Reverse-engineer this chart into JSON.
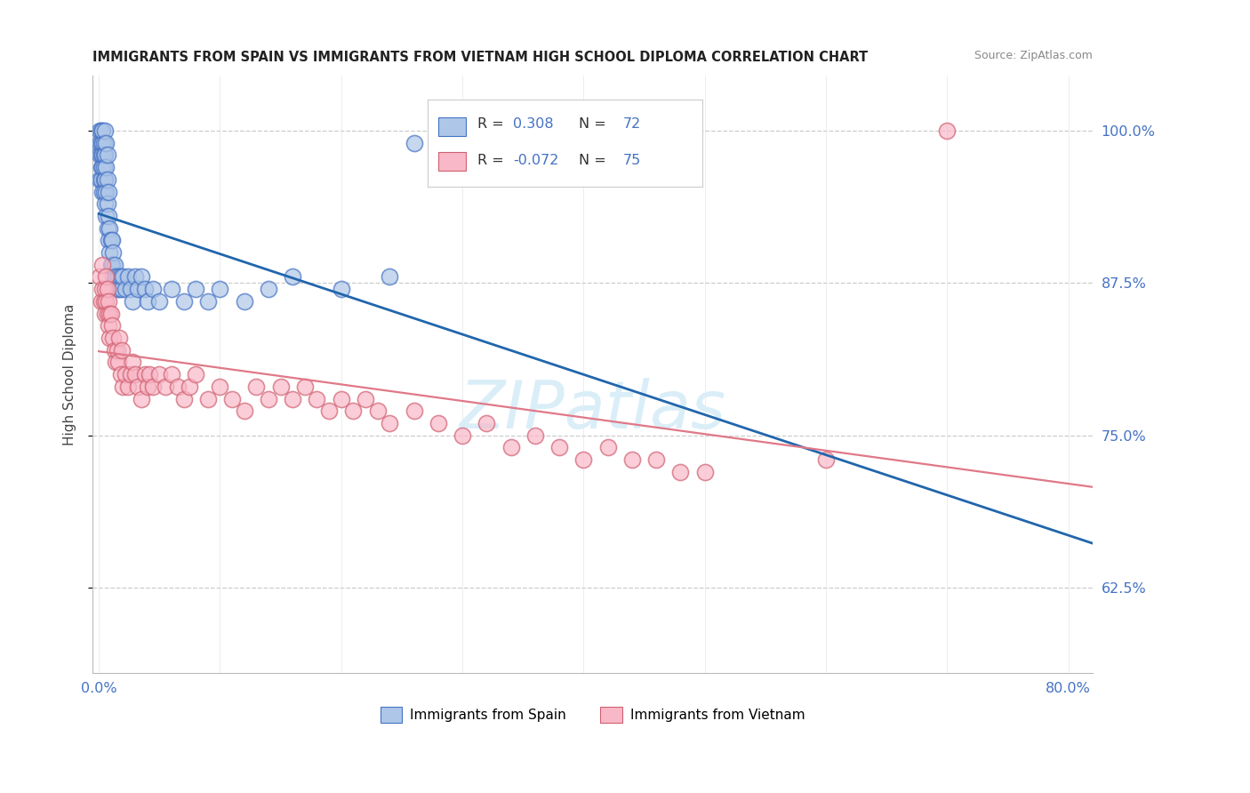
{
  "title": "IMMIGRANTS FROM SPAIN VS IMMIGRANTS FROM VIETNAM HIGH SCHOOL DIPLOMA CORRELATION CHART",
  "source": "Source: ZipAtlas.com",
  "ylabel": "High School Diploma",
  "yticks": [
    0.625,
    0.75,
    0.875,
    1.0
  ],
  "ytick_labels": [
    "62.5%",
    "75.0%",
    "87.5%",
    "100.0%"
  ],
  "xticks": [
    0.0,
    0.1,
    0.2,
    0.3,
    0.4,
    0.5,
    0.6,
    0.7,
    0.8
  ],
  "xlim": [
    -0.005,
    0.82
  ],
  "ylim": [
    0.555,
    1.045
  ],
  "legend_r_spain": "0.308",
  "legend_n_spain": "72",
  "legend_r_vietnam": "-0.072",
  "legend_n_vietnam": "75",
  "color_spain": "#aec6e8",
  "color_vietnam": "#f9b8c8",
  "edge_color_spain": "#4472c4",
  "edge_color_vietnam": "#d06070",
  "line_color_spain": "#2166ac",
  "line_color_vietnam": "#e07888",
  "watermark": "ZIPatlas",
  "watermark_color": "#daeef8",
  "background_color": "#ffffff",
  "grid_color": "#cccccc",
  "tick_label_color": "#4472c4",
  "title_color": "#222222",
  "source_color": "#888888",
  "legend_text_color": "#333333",
  "legend_num_color": "#4472c4",
  "spain_x": [
    0.001,
    0.001,
    0.001,
    0.001,
    0.002,
    0.002,
    0.002,
    0.002,
    0.002,
    0.003,
    0.003,
    0.003,
    0.003,
    0.003,
    0.004,
    0.004,
    0.004,
    0.004,
    0.004,
    0.005,
    0.005,
    0.005,
    0.005,
    0.006,
    0.006,
    0.006,
    0.006,
    0.007,
    0.007,
    0.007,
    0.007,
    0.008,
    0.008,
    0.008,
    0.009,
    0.009,
    0.01,
    0.01,
    0.011,
    0.011,
    0.012,
    0.012,
    0.013,
    0.014,
    0.015,
    0.016,
    0.017,
    0.018,
    0.019,
    0.02,
    0.022,
    0.024,
    0.026,
    0.028,
    0.03,
    0.032,
    0.035,
    0.038,
    0.04,
    0.045,
    0.05,
    0.06,
    0.07,
    0.08,
    0.09,
    0.1,
    0.12,
    0.14,
    0.16,
    0.2,
    0.24,
    0.26
  ],
  "spain_y": [
    0.96,
    0.98,
    1.0,
    0.99,
    0.97,
    0.99,
    1.0,
    0.98,
    0.96,
    0.99,
    0.97,
    0.95,
    0.98,
    1.0,
    0.96,
    0.98,
    0.95,
    0.97,
    0.99,
    0.94,
    0.96,
    0.98,
    1.0,
    0.93,
    0.95,
    0.97,
    0.99,
    0.92,
    0.94,
    0.96,
    0.98,
    0.91,
    0.93,
    0.95,
    0.9,
    0.92,
    0.89,
    0.91,
    0.89,
    0.91,
    0.88,
    0.9,
    0.89,
    0.88,
    0.87,
    0.88,
    0.87,
    0.88,
    0.87,
    0.88,
    0.87,
    0.88,
    0.87,
    0.86,
    0.88,
    0.87,
    0.88,
    0.87,
    0.86,
    0.87,
    0.86,
    0.87,
    0.86,
    0.87,
    0.86,
    0.87,
    0.86,
    0.87,
    0.88,
    0.87,
    0.88,
    0.99
  ],
  "vietnam_x": [
    0.001,
    0.002,
    0.003,
    0.003,
    0.004,
    0.005,
    0.005,
    0.006,
    0.006,
    0.007,
    0.007,
    0.008,
    0.008,
    0.009,
    0.009,
    0.01,
    0.011,
    0.012,
    0.013,
    0.014,
    0.015,
    0.016,
    0.017,
    0.018,
    0.019,
    0.02,
    0.022,
    0.024,
    0.026,
    0.028,
    0.03,
    0.032,
    0.035,
    0.038,
    0.04,
    0.042,
    0.045,
    0.05,
    0.055,
    0.06,
    0.065,
    0.07,
    0.075,
    0.08,
    0.09,
    0.1,
    0.11,
    0.12,
    0.13,
    0.14,
    0.15,
    0.16,
    0.17,
    0.18,
    0.19,
    0.2,
    0.21,
    0.22,
    0.23,
    0.24,
    0.26,
    0.28,
    0.3,
    0.32,
    0.34,
    0.36,
    0.38,
    0.4,
    0.42,
    0.44,
    0.46,
    0.48,
    0.5,
    0.6,
    0.7
  ],
  "vietnam_y": [
    0.88,
    0.86,
    0.87,
    0.89,
    0.86,
    0.87,
    0.85,
    0.88,
    0.86,
    0.87,
    0.85,
    0.86,
    0.84,
    0.85,
    0.83,
    0.85,
    0.84,
    0.83,
    0.82,
    0.81,
    0.82,
    0.81,
    0.83,
    0.8,
    0.82,
    0.79,
    0.8,
    0.79,
    0.8,
    0.81,
    0.8,
    0.79,
    0.78,
    0.8,
    0.79,
    0.8,
    0.79,
    0.8,
    0.79,
    0.8,
    0.79,
    0.78,
    0.79,
    0.8,
    0.78,
    0.79,
    0.78,
    0.77,
    0.79,
    0.78,
    0.79,
    0.78,
    0.79,
    0.78,
    0.77,
    0.78,
    0.77,
    0.78,
    0.77,
    0.76,
    0.77,
    0.76,
    0.75,
    0.76,
    0.74,
    0.75,
    0.74,
    0.73,
    0.74,
    0.73,
    0.73,
    0.72,
    0.72,
    0.73,
    1.0
  ]
}
